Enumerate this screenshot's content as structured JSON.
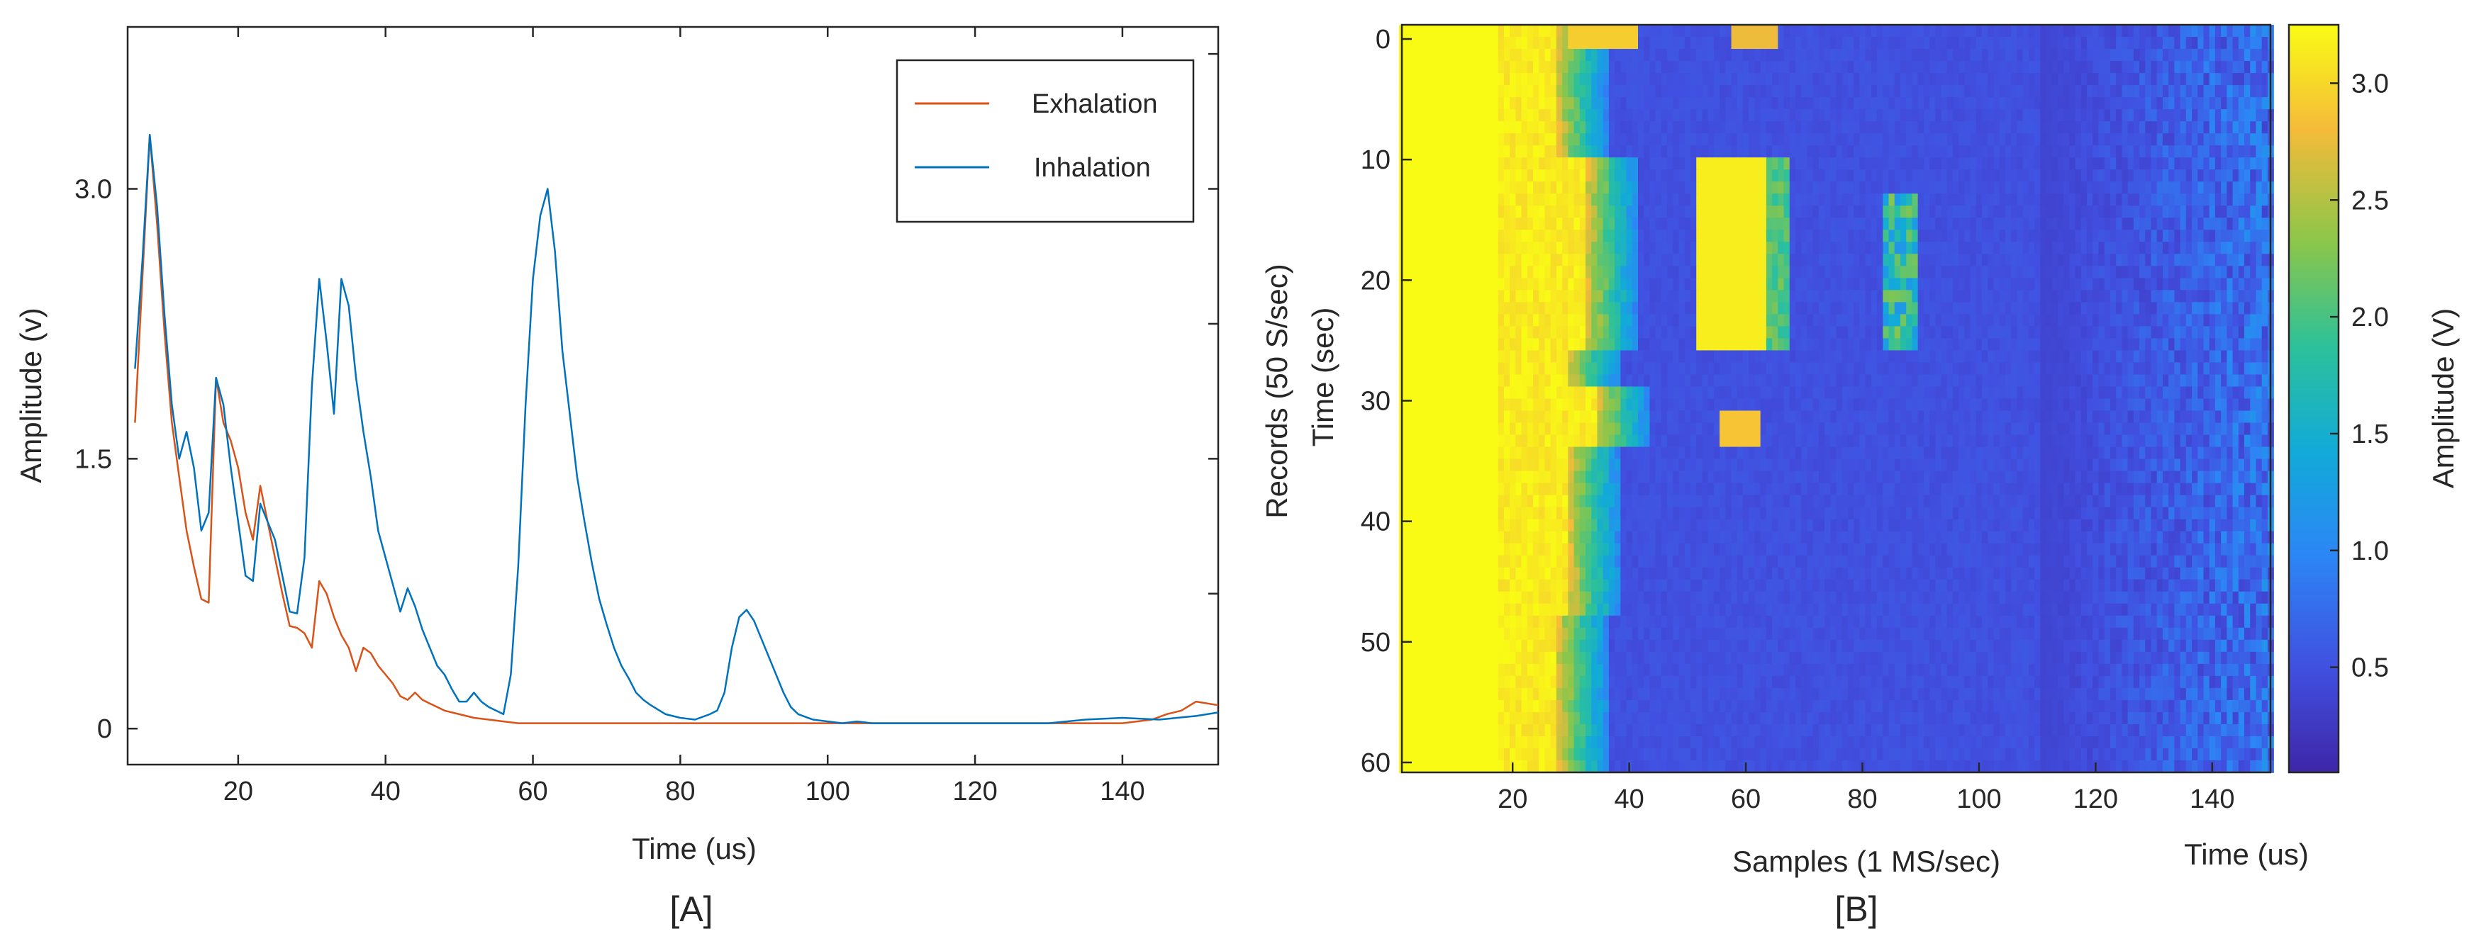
{
  "chart_data": [
    {
      "type": "line",
      "panel_label": "[A]",
      "xlabel": "Time (us)",
      "ylabel": "Amplitude (v)",
      "xlim": [
        5,
        153
      ],
      "ylim": [
        -0.2,
        3.9
      ],
      "xticks": [
        20,
        40,
        60,
        80,
        100,
        120,
        140
      ],
      "yticks": [
        0,
        1.5,
        3.0
      ],
      "ytick_labels": [
        "0",
        "1.5",
        "3.0"
      ],
      "legend": {
        "position": "top-right",
        "entries": [
          "Exhalation",
          "Inhalation"
        ]
      },
      "series": [
        {
          "name": "Exhalation",
          "color": "#D95319",
          "x": [
            6,
            7,
            8,
            9,
            10,
            11,
            12,
            13,
            14,
            15,
            16,
            17,
            18,
            19,
            20,
            21,
            22,
            23,
            24,
            25,
            26,
            27,
            28,
            29,
            30,
            31,
            32,
            33,
            34,
            35,
            36,
            37,
            38,
            39,
            40,
            41,
            42,
            43,
            44,
            45,
            46,
            48,
            50,
            52,
            54,
            56,
            58,
            60,
            70,
            80,
            90,
            100,
            110,
            120,
            130,
            140,
            144,
            146,
            148,
            150,
            153
          ],
          "values": [
            1.7,
            2.5,
            3.3,
            2.8,
            2.2,
            1.7,
            1.4,
            1.1,
            0.9,
            0.72,
            0.7,
            1.95,
            1.7,
            1.6,
            1.45,
            1.2,
            1.05,
            1.35,
            1.15,
            0.95,
            0.75,
            0.57,
            0.56,
            0.53,
            0.45,
            0.82,
            0.75,
            0.62,
            0.52,
            0.45,
            0.32,
            0.45,
            0.42,
            0.35,
            0.3,
            0.25,
            0.18,
            0.16,
            0.2,
            0.16,
            0.14,
            0.1,
            0.08,
            0.06,
            0.05,
            0.04,
            0.03,
            0.03,
            0.03,
            0.03,
            0.03,
            0.03,
            0.03,
            0.03,
            0.03,
            0.03,
            0.05,
            0.08,
            0.1,
            0.15,
            0.13
          ]
        },
        {
          "name": "Inhalation",
          "color": "#0072BD",
          "x": [
            6,
            7,
            8,
            9,
            10,
            11,
            12,
            13,
            14,
            15,
            16,
            17,
            18,
            19,
            20,
            21,
            22,
            23,
            24,
            25,
            26,
            27,
            28,
            29,
            30,
            31,
            32,
            33,
            34,
            35,
            36,
            37,
            38,
            39,
            40,
            41,
            42,
            43,
            44,
            45,
            46,
            47,
            48,
            49,
            50,
            51,
            52,
            53,
            54,
            55,
            56,
            57,
            58,
            59,
            60,
            61,
            62,
            63,
            64,
            65,
            66,
            67,
            68,
            69,
            70,
            71,
            72,
            73,
            74,
            75,
            76,
            78,
            80,
            82,
            84,
            85,
            86,
            87,
            88,
            89,
            90,
            91,
            92,
            93,
            94,
            95,
            96,
            98,
            100,
            102,
            104,
            106,
            110,
            120,
            130,
            135,
            140,
            145,
            150,
            153
          ],
          "values": [
            2.0,
            2.6,
            3.3,
            2.9,
            2.3,
            1.8,
            1.5,
            1.65,
            1.45,
            1.1,
            1.2,
            1.95,
            1.8,
            1.45,
            1.15,
            0.85,
            0.82,
            1.25,
            1.15,
            1.05,
            0.85,
            0.65,
            0.64,
            0.95,
            1.9,
            2.5,
            2.15,
            1.75,
            2.5,
            2.35,
            1.95,
            1.65,
            1.4,
            1.1,
            0.95,
            0.8,
            0.65,
            0.78,
            0.68,
            0.55,
            0.45,
            0.35,
            0.3,
            0.22,
            0.15,
            0.15,
            0.2,
            0.15,
            0.12,
            0.1,
            0.08,
            0.3,
            0.9,
            1.8,
            2.5,
            2.85,
            3.0,
            2.65,
            2.1,
            1.75,
            1.4,
            1.15,
            0.92,
            0.72,
            0.58,
            0.45,
            0.35,
            0.28,
            0.2,
            0.16,
            0.13,
            0.08,
            0.06,
            0.05,
            0.08,
            0.1,
            0.2,
            0.45,
            0.62,
            0.66,
            0.6,
            0.5,
            0.4,
            0.3,
            0.2,
            0.12,
            0.08,
            0.05,
            0.04,
            0.03,
            0.04,
            0.03,
            0.03,
            0.03,
            0.03,
            0.05,
            0.06,
            0.05,
            0.07,
            0.09
          ]
        }
      ]
    },
    {
      "type": "heatmap",
      "panel_label": "[B]",
      "xlabel": "Samples (1 MS/sec)",
      "xlabel_secondary": "Time (us)",
      "ylabel": "Records (50 S/sec)",
      "ylabel_secondary": "Time (sec)",
      "xlim": [
        1,
        150
      ],
      "ylim": [
        0,
        62
      ],
      "xticks": [
        20,
        40,
        60,
        80,
        100,
        120,
        140
      ],
      "yticks": [
        0,
        10,
        20,
        30,
        40,
        50,
        60
      ],
      "colorbar": {
        "label": "Amplitude (V)",
        "range": [
          0.05,
          3.25
        ],
        "ticks": [
          0.5,
          1.0,
          1.5,
          2.0,
          2.5,
          3.0
        ],
        "tick_labels": [
          "0.5",
          "1.0",
          "1.5",
          "2.0",
          "2.5",
          "3.0"
        ],
        "colormap": "parula"
      }
    }
  ]
}
